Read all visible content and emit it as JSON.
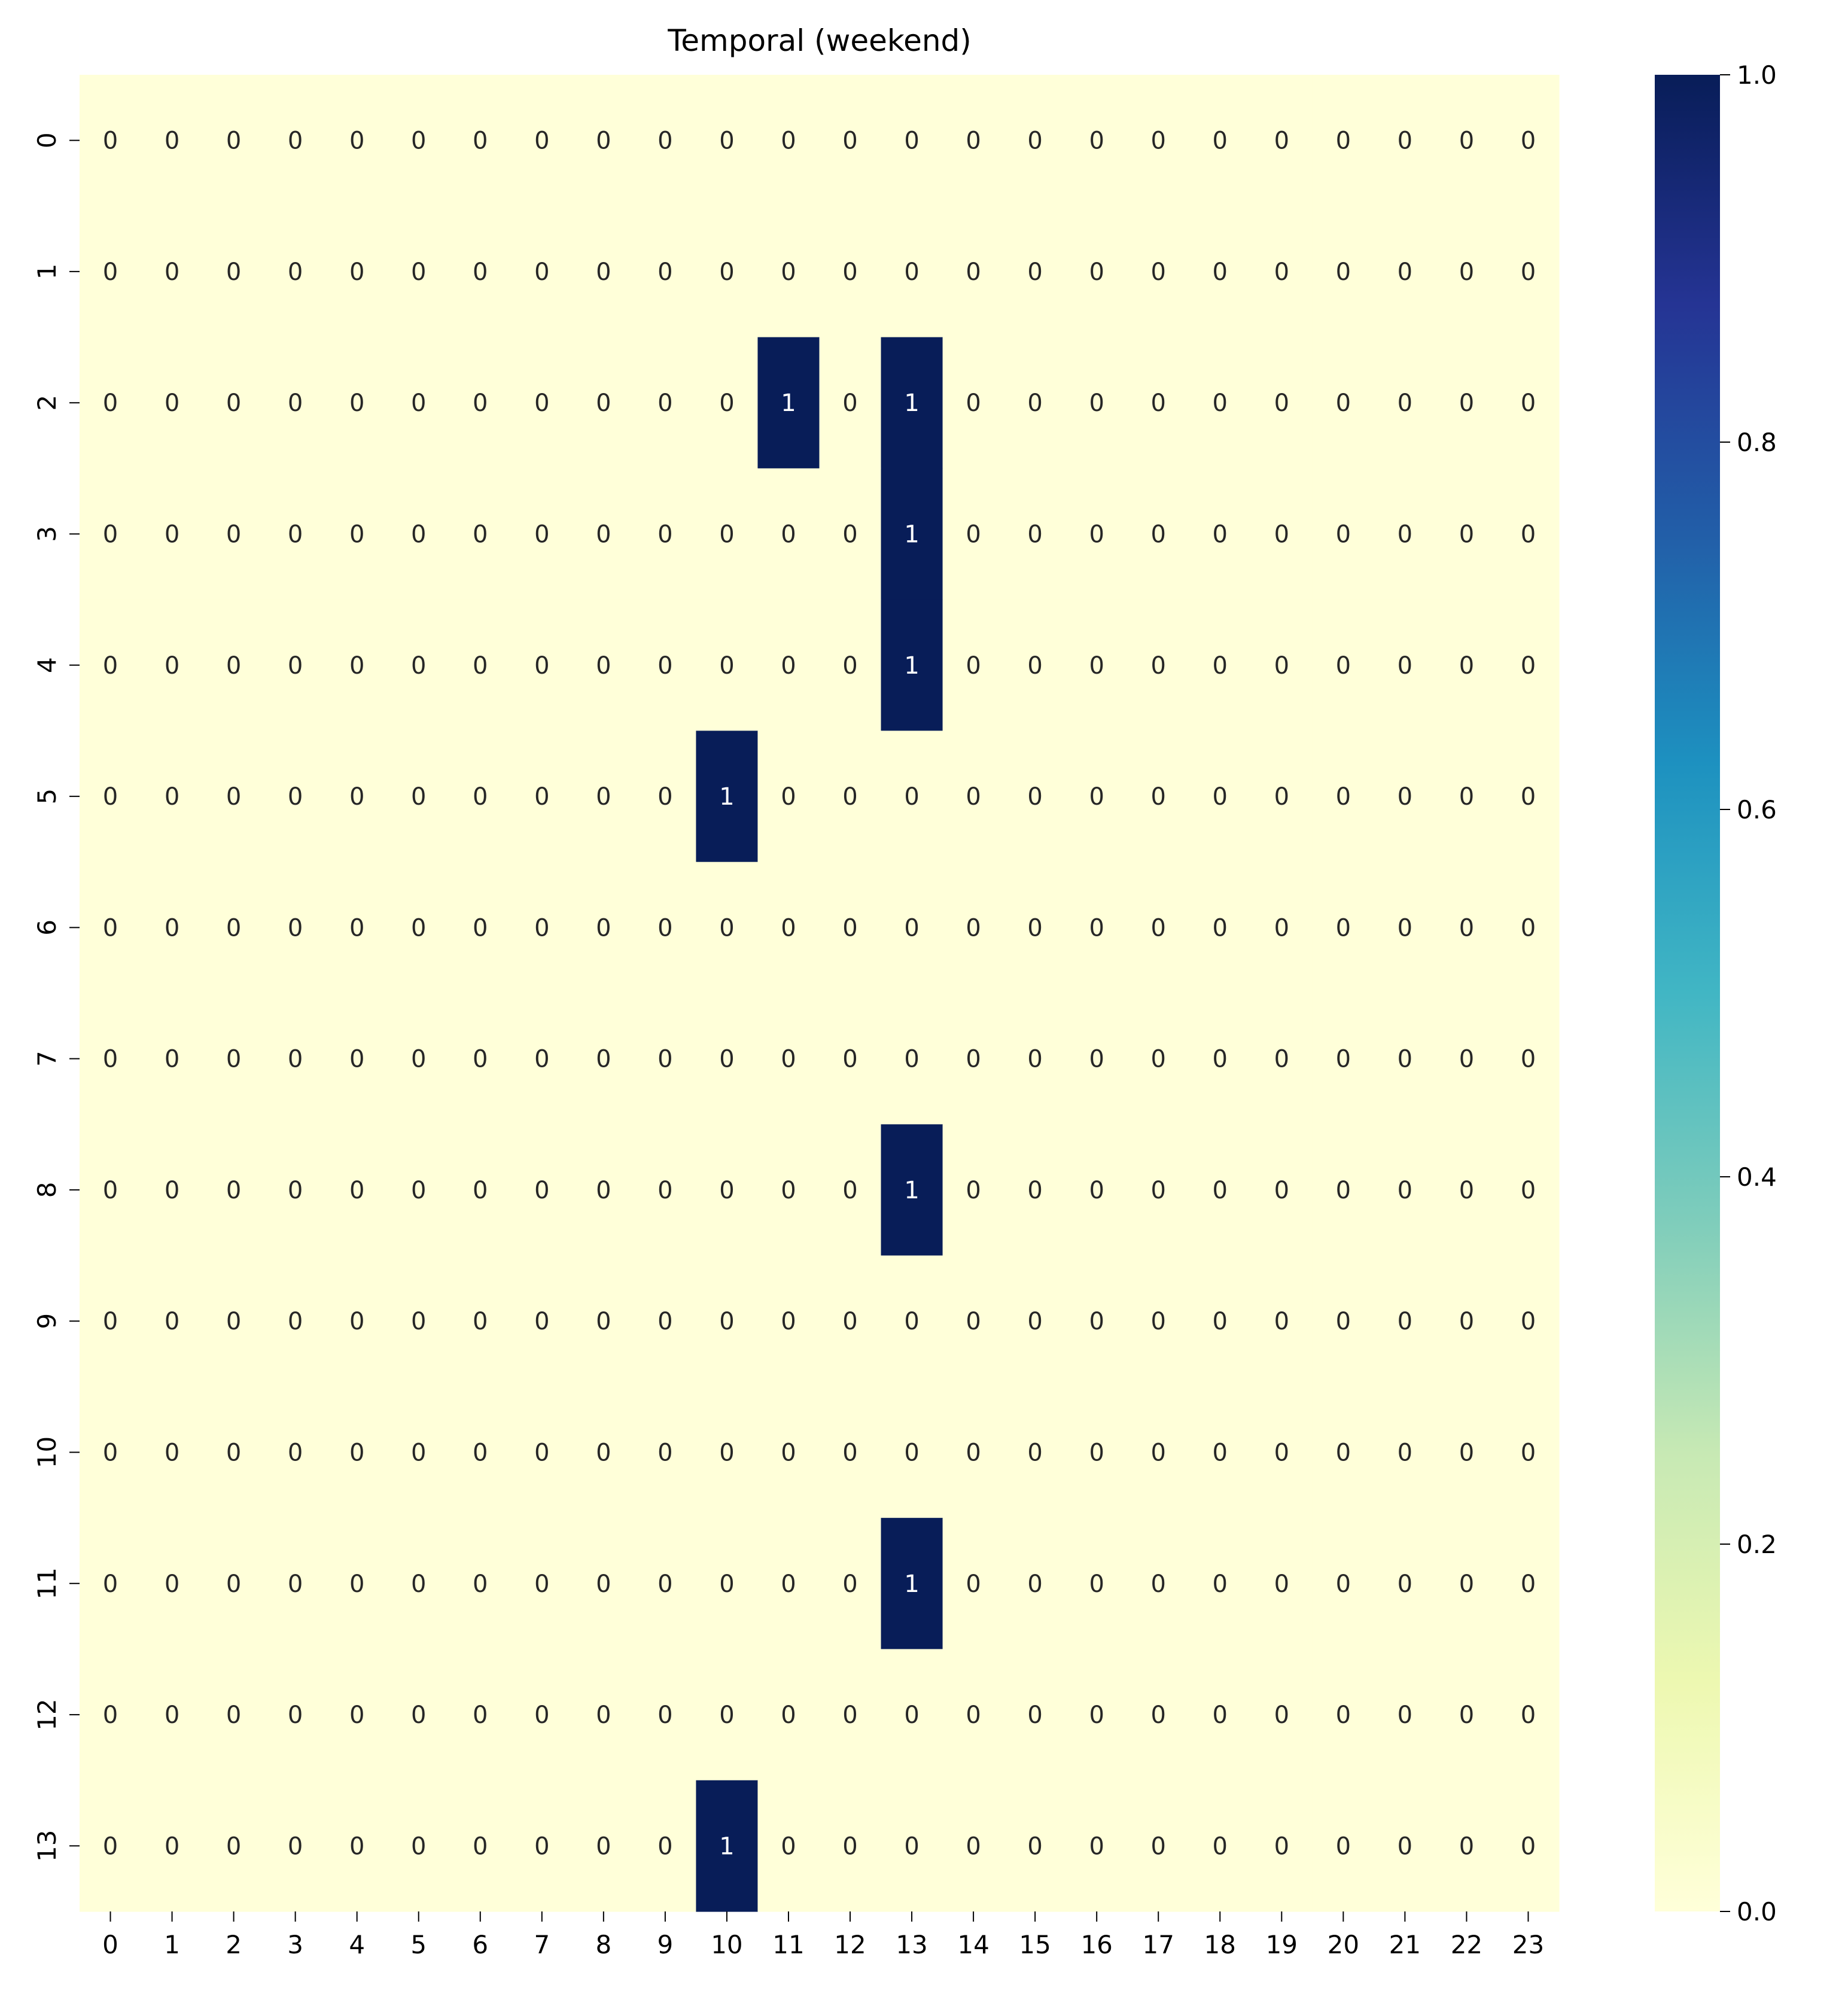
{
  "chart_data": {
    "type": "heatmap",
    "title": "Temporal (weekend)",
    "xlabel": "",
    "ylabel": "",
    "x_categories": [
      "0",
      "1",
      "2",
      "3",
      "4",
      "5",
      "6",
      "7",
      "8",
      "9",
      "10",
      "11",
      "12",
      "13",
      "14",
      "15",
      "16",
      "17",
      "18",
      "19",
      "20",
      "21",
      "22",
      "23"
    ],
    "y_categories": [
      "0",
      "1",
      "2",
      "3",
      "4",
      "5",
      "6",
      "7",
      "8",
      "9",
      "10",
      "11",
      "12",
      "13"
    ],
    "values": [
      [
        0,
        0,
        0,
        0,
        0,
        0,
        0,
        0,
        0,
        0,
        0,
        0,
        0,
        0,
        0,
        0,
        0,
        0,
        0,
        0,
        0,
        0,
        0,
        0
      ],
      [
        0,
        0,
        0,
        0,
        0,
        0,
        0,
        0,
        0,
        0,
        0,
        0,
        0,
        0,
        0,
        0,
        0,
        0,
        0,
        0,
        0,
        0,
        0,
        0
      ],
      [
        0,
        0,
        0,
        0,
        0,
        0,
        0,
        0,
        0,
        0,
        0,
        1,
        0,
        1,
        0,
        0,
        0,
        0,
        0,
        0,
        0,
        0,
        0,
        0
      ],
      [
        0,
        0,
        0,
        0,
        0,
        0,
        0,
        0,
        0,
        0,
        0,
        0,
        0,
        1,
        0,
        0,
        0,
        0,
        0,
        0,
        0,
        0,
        0,
        0
      ],
      [
        0,
        0,
        0,
        0,
        0,
        0,
        0,
        0,
        0,
        0,
        0,
        0,
        0,
        1,
        0,
        0,
        0,
        0,
        0,
        0,
        0,
        0,
        0,
        0
      ],
      [
        0,
        0,
        0,
        0,
        0,
        0,
        0,
        0,
        0,
        0,
        1,
        0,
        0,
        0,
        0,
        0,
        0,
        0,
        0,
        0,
        0,
        0,
        0,
        0
      ],
      [
        0,
        0,
        0,
        0,
        0,
        0,
        0,
        0,
        0,
        0,
        0,
        0,
        0,
        0,
        0,
        0,
        0,
        0,
        0,
        0,
        0,
        0,
        0,
        0
      ],
      [
        0,
        0,
        0,
        0,
        0,
        0,
        0,
        0,
        0,
        0,
        0,
        0,
        0,
        0,
        0,
        0,
        0,
        0,
        0,
        0,
        0,
        0,
        0,
        0
      ],
      [
        0,
        0,
        0,
        0,
        0,
        0,
        0,
        0,
        0,
        0,
        0,
        0,
        0,
        1,
        0,
        0,
        0,
        0,
        0,
        0,
        0,
        0,
        0,
        0
      ],
      [
        0,
        0,
        0,
        0,
        0,
        0,
        0,
        0,
        0,
        0,
        0,
        0,
        0,
        0,
        0,
        0,
        0,
        0,
        0,
        0,
        0,
        0,
        0,
        0
      ],
      [
        0,
        0,
        0,
        0,
        0,
        0,
        0,
        0,
        0,
        0,
        0,
        0,
        0,
        0,
        0,
        0,
        0,
        0,
        0,
        0,
        0,
        0,
        0,
        0
      ],
      [
        0,
        0,
        0,
        0,
        0,
        0,
        0,
        0,
        0,
        0,
        0,
        0,
        0,
        1,
        0,
        0,
        0,
        0,
        0,
        0,
        0,
        0,
        0,
        0
      ],
      [
        0,
        0,
        0,
        0,
        0,
        0,
        0,
        0,
        0,
        0,
        0,
        0,
        0,
        0,
        0,
        0,
        0,
        0,
        0,
        0,
        0,
        0,
        0,
        0
      ],
      [
        0,
        0,
        0,
        0,
        0,
        0,
        0,
        0,
        0,
        0,
        1,
        0,
        0,
        0,
        0,
        0,
        0,
        0,
        0,
        0,
        0,
        0,
        0,
        0
      ]
    ],
    "annotated": true,
    "colormap": "YlGnBu",
    "colormap_stops": [
      "#ffffd9",
      "#edf8b1",
      "#c7e9b4",
      "#7fcdbb",
      "#41b6c4",
      "#1d91c0",
      "#225ea8",
      "#253494",
      "#081d58"
    ],
    "colorbar": {
      "range": [
        0.0,
        1.0
      ],
      "ticks": [
        0.0,
        0.2,
        0.4,
        0.6,
        0.8,
        1.0
      ],
      "tick_labels": [
        "0.0",
        "0.2",
        "0.4",
        "0.6",
        "0.8",
        "1.0"
      ],
      "position": "right"
    },
    "text_color_light": "#ffffff",
    "text_color_dark": "#262626"
  }
}
